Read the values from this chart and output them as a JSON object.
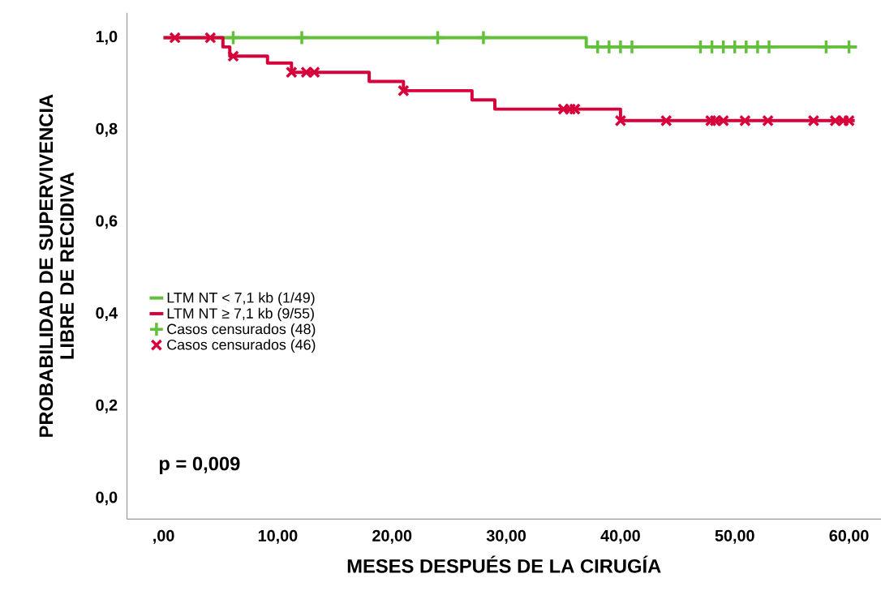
{
  "chart_data": {
    "type": "step",
    "xlabel": "MESES DESPUÉS DE LA CIRUGÍA",
    "ylabel": "PROBABILIDAD DE SUPERVIVENCIA LIBRE DE RECIDIVA",
    "xlim": [
      -3.2,
      62.8
    ],
    "ylim": [
      -0.045,
      1.054
    ],
    "xticks": [
      {
        "value": 0,
        "label": ",00"
      },
      {
        "value": 10,
        "label": "10,00"
      },
      {
        "value": 20,
        "label": "20,00"
      },
      {
        "value": 30,
        "label": "30,00"
      },
      {
        "value": 40,
        "label": "40,00"
      },
      {
        "value": 50,
        "label": "50,00"
      },
      {
        "value": 60,
        "label": "60,00"
      }
    ],
    "yticks": [
      {
        "value": 0,
        "label": "0,0"
      },
      {
        "value": 0.2,
        "label": "0,2"
      },
      {
        "value": 0.4,
        "label": "0,4"
      },
      {
        "value": 0.6,
        "label": "0,6"
      },
      {
        "value": 0.8,
        "label": "0,8"
      },
      {
        "value": 1.0,
        "label": "1,0"
      }
    ],
    "grid": false,
    "legend": "left",
    "annotations": [
      "p = 0,009"
    ],
    "series": [
      {
        "name": "LTM NT < 7,1 kb (1/49)",
        "type": "step",
        "color": "#62c03a",
        "x": [
          0,
          37,
          60.7
        ],
        "values": [
          1.0,
          0.98,
          0.98
        ]
      },
      {
        "name": "LTM NT ≥ 7,1 kb (9/55)",
        "type": "step",
        "color": "#d6003a",
        "x": [
          0,
          5.2,
          5.8,
          9.1,
          11.2,
          18,
          21,
          27,
          29,
          40,
          60.5
        ],
        "values": [
          1.0,
          0.98,
          0.96,
          0.945,
          0.925,
          0.905,
          0.885,
          0.865,
          0.845,
          0.82,
          0.82
        ]
      },
      {
        "name": "Casos censurados (48)",
        "type": "scatter",
        "marker": "plus",
        "color": "#62c03a",
        "x": [
          6.1,
          12.1,
          24,
          28,
          38,
          39,
          40,
          41,
          47,
          48,
          49,
          50,
          51,
          52,
          53,
          58,
          60
        ],
        "values": [
          1.0,
          1.0,
          1.0,
          1.0,
          0.98,
          0.98,
          0.98,
          0.98,
          0.98,
          0.98,
          0.98,
          0.98,
          0.98,
          0.98,
          0.98,
          0.98,
          0.98
        ]
      },
      {
        "name": "Casos censurados (46)",
        "type": "scatter",
        "marker": "cross",
        "color": "#d6003a",
        "x": [
          1.0,
          4.1,
          6.1,
          11.2,
          12.5,
          13.2,
          21,
          35,
          35.6,
          36,
          40,
          44,
          47.9,
          48.3,
          49,
          50.9,
          52.9,
          56.9,
          58.8,
          59.5,
          60
        ],
        "values": [
          1.0,
          1.0,
          0.96,
          0.925,
          0.925,
          0.925,
          0.885,
          0.845,
          0.845,
          0.845,
          0.82,
          0.82,
          0.82,
          0.82,
          0.82,
          0.82,
          0.82,
          0.82,
          0.82,
          0.82,
          0.82
        ]
      }
    ]
  }
}
